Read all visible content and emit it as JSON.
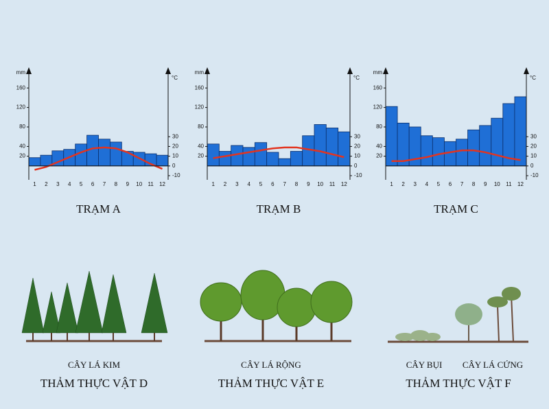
{
  "chart_data": [
    {
      "type": "bar",
      "title": "TRẠM A",
      "ylabel": "mm",
      "y2label": "°C",
      "categories": [
        "1",
        "2",
        "3",
        "4",
        "5",
        "6",
        "7",
        "8",
        "9",
        "10",
        "11",
        "12"
      ],
      "series": [
        {
          "color": "#1f6fd6",
          "values": [
            17,
            22,
            31,
            34,
            45,
            63,
            55,
            49,
            30,
            28,
            25,
            22
          ]
        },
        {
          "type": "line",
          "axis": "y2",
          "color": "#e3341f",
          "values": [
            -4,
            -1,
            4,
            9,
            14,
            18,
            19,
            18,
            14,
            8,
            2,
            -3
          ]
        }
      ],
      "ylim": [
        -20,
        180
      ],
      "yticks": [
        20,
        40,
        80,
        120,
        160
      ],
      "y2lim": [
        -10,
        90
      ],
      "y2ticks": [
        -10,
        0,
        10,
        20,
        30
      ]
    },
    {
      "type": "bar",
      "title": "TRẠM B",
      "ylabel": "mm",
      "y2label": "°C",
      "categories": [
        "1",
        "2",
        "3",
        "4",
        "5",
        "6",
        "7",
        "8",
        "9",
        "10",
        "11",
        "12"
      ],
      "series": [
        {
          "color": "#1f6fd6",
          "values": [
            45,
            30,
            42,
            38,
            48,
            28,
            15,
            30,
            62,
            85,
            78,
            70
          ]
        },
        {
          "type": "line",
          "axis": "y2",
          "color": "#e3341f",
          "values": [
            8,
            10,
            12,
            14,
            16,
            18,
            19,
            19,
            17,
            15,
            12,
            9
          ]
        }
      ],
      "ylim": [
        -20,
        180
      ],
      "yticks": [
        20,
        40,
        80,
        120,
        160
      ],
      "y2lim": [
        -10,
        90
      ],
      "y2ticks": [
        -10,
        0,
        10,
        20,
        30
      ]
    },
    {
      "type": "bar",
      "title": "TRẠM C",
      "ylabel": "mm",
      "y2label": "°C",
      "categories": [
        "1",
        "2",
        "3",
        "4",
        "5",
        "6",
        "7",
        "8",
        "9",
        "10",
        "11",
        "12"
      ],
      "series": [
        {
          "color": "#1f6fd6",
          "values": [
            122,
            88,
            80,
            62,
            58,
            50,
            55,
            74,
            83,
            98,
            128,
            142
          ]
        },
        {
          "type": "line",
          "axis": "y2",
          "color": "#e3341f",
          "values": [
            5,
            5,
            7,
            9,
            12,
            14,
            16,
            16,
            14,
            11,
            8,
            6
          ]
        }
      ],
      "ylim": [
        -20,
        180
      ],
      "yticks": [
        20,
        40,
        80,
        120,
        160
      ],
      "y2lim": [
        -10,
        90
      ],
      "y2ticks": [
        -10,
        0,
        10,
        20,
        30
      ]
    }
  ],
  "vegetation": [
    {
      "labels": [
        "CÂY LÁ KIM"
      ],
      "caption": "THẢM THỰC VẬT D"
    },
    {
      "labels": [
        "CÂY LÁ RỘNG"
      ],
      "caption": "THẢM THỰC VẬT E"
    },
    {
      "labels": [
        "CÂY BỤI",
        "CÂY LÁ CỨNG"
      ],
      "caption": "THẢM THỰC VẬT F"
    }
  ]
}
